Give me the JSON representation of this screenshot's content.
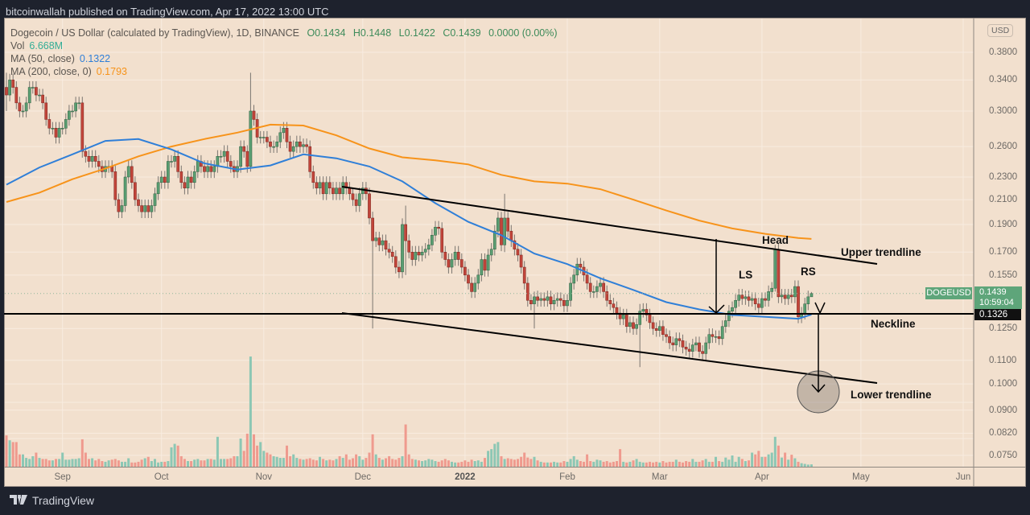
{
  "header": {
    "published": "bitcoinwallah published on TradingView.com, Apr 17, 2022 13:00 UTC"
  },
  "legend": {
    "symbol": "Dogecoin / US Dollar (calculated by TradingView), 1D, BINANCE",
    "open": "O0.1434",
    "high": "H0.1448",
    "low": "L0.1422",
    "close": "C0.1439",
    "change": "0.0000 (0.00%)",
    "vol_label": "Vol",
    "vol_value": "6.668M",
    "ma50_label": "MA (50, close)",
    "ma50_value": "0.1322",
    "ma200_label": "MA (200, close, 0)",
    "ma200_value": "0.1793"
  },
  "price_axis": {
    "currency": "USD",
    "ticks": [
      "0.3800",
      "0.3400",
      "0.3000",
      "0.2600",
      "0.2300",
      "0.2100",
      "0.1900",
      "0.1700",
      "0.1550",
      "0.1250",
      "0.1100",
      "0.1000",
      "0.0900",
      "0.0820",
      "0.0750"
    ],
    "last_symbol": "DOGEUSD",
    "last_price": "0.1439",
    "countdown": "10:59:04",
    "neckline_price": "0.1326"
  },
  "time_axis": {
    "labels": [
      "Sep",
      "Oct",
      "Nov",
      "Dec",
      "2022",
      "Feb",
      "Mar",
      "Apr",
      "May",
      "Jun"
    ]
  },
  "annotations": {
    "head": "Head",
    "ls": "LS",
    "rs": "RS",
    "upper": "Upper trendline",
    "neckline": "Neckline",
    "lower": "Lower trendline"
  },
  "footer": {
    "brand": "TradingView",
    "logo": "17"
  },
  "colors": {
    "up": "#5a9e72",
    "down": "#c2453a",
    "vol_up": "#8cc7b4",
    "vol_down": "#ef9a8e",
    "ma50": "#2f7fd8",
    "ma200": "#f7931a",
    "background": "#f2e0ce"
  },
  "chart_data": {
    "type": "candlestick",
    "scale": "log",
    "ylim": [
      0.075,
      0.4
    ],
    "xrange": [
      "2021-08-15",
      "2022-06-01"
    ],
    "first_date": "2021-08-15",
    "last_date": "2022-04-17",
    "first_open": 0.33,
    "close": [
      0.32,
      0.34,
      0.33,
      0.31,
      0.3,
      0.3,
      0.31,
      0.33,
      0.33,
      0.32,
      0.32,
      0.31,
      0.29,
      0.28,
      0.28,
      0.27,
      0.28,
      0.28,
      0.29,
      0.3,
      0.3,
      0.31,
      0.31,
      0.255,
      0.25,
      0.245,
      0.25,
      0.245,
      0.24,
      0.235,
      0.24,
      0.24,
      0.235,
      0.21,
      0.2,
      0.205,
      0.23,
      0.24,
      0.225,
      0.21,
      0.205,
      0.2,
      0.205,
      0.2,
      0.205,
      0.215,
      0.225,
      0.23,
      0.225,
      0.245,
      0.245,
      0.25,
      0.235,
      0.225,
      0.22,
      0.23,
      0.225,
      0.235,
      0.245,
      0.24,
      0.235,
      0.24,
      0.235,
      0.24,
      0.25,
      0.25,
      0.255,
      0.245,
      0.24,
      0.235,
      0.24,
      0.26,
      0.255,
      0.24,
      0.3,
      0.29,
      0.27,
      0.27,
      0.27,
      0.265,
      0.26,
      0.26,
      0.265,
      0.275,
      0.28,
      0.265,
      0.255,
      0.26,
      0.265,
      0.26,
      0.262,
      0.26,
      0.235,
      0.225,
      0.22,
      0.225,
      0.215,
      0.225,
      0.22,
      0.215,
      0.22,
      0.215,
      0.225,
      0.22,
      0.215,
      0.21,
      0.205,
      0.215,
      0.22,
      0.215,
      0.195,
      0.178,
      0.18,
      0.175,
      0.178,
      0.172,
      0.17,
      0.167,
      0.16,
      0.157,
      0.19,
      0.178,
      0.17,
      0.165,
      0.17,
      0.168,
      0.17,
      0.172,
      0.175,
      0.182,
      0.188,
      0.187,
      0.17,
      0.165,
      0.16,
      0.165,
      0.17,
      0.165,
      0.16,
      0.155,
      0.15,
      0.145,
      0.15,
      0.155,
      0.165,
      0.158,
      0.168,
      0.172,
      0.185,
      0.195,
      0.175,
      0.195,
      0.185,
      0.178,
      0.172,
      0.168,
      0.16,
      0.15,
      0.14,
      0.138,
      0.142,
      0.14,
      0.141,
      0.14,
      0.142,
      0.138,
      0.14,
      0.141,
      0.14,
      0.137,
      0.14,
      0.15,
      0.155,
      0.162,
      0.16,
      0.155,
      0.15,
      0.145,
      0.145,
      0.148,
      0.15,
      0.145,
      0.14,
      0.138,
      0.136,
      0.133,
      0.13,
      0.132,
      0.126,
      0.128,
      0.125,
      0.127,
      0.134,
      0.135,
      0.132,
      0.128,
      0.125,
      0.124,
      0.126,
      0.122,
      0.121,
      0.118,
      0.117,
      0.12,
      0.119,
      0.116,
      0.115,
      0.114,
      0.117,
      0.118,
      0.114,
      0.113,
      0.118,
      0.122,
      0.121,
      0.121,
      0.12,
      0.126,
      0.129,
      0.134,
      0.136,
      0.14,
      0.143,
      0.141,
      0.142,
      0.14,
      0.141,
      0.138,
      0.136,
      0.141,
      0.14,
      0.145,
      0.147,
      0.172,
      0.142,
      0.143,
      0.141,
      0.143,
      0.142,
      0.148,
      0.131,
      0.133,
      0.138,
      0.142,
      0.1439
    ],
    "wick_extremes": [
      {
        "i": 0,
        "high": 0.35,
        "low": 0.3
      },
      {
        "i": 74,
        "high": 0.35,
        "low": 0.235
      },
      {
        "i": 111,
        "high": 0.2,
        "low": 0.125
      },
      {
        "i": 121,
        "high": 0.205,
        "low": 0.155
      },
      {
        "i": 151,
        "high": 0.215,
        "low": 0.17
      },
      {
        "i": 160,
        "high": 0.145,
        "low": 0.125
      },
      {
        "i": 192,
        "high": 0.138,
        "low": 0.107
      },
      {
        "i": 233,
        "high": 0.175,
        "low": 0.145
      },
      {
        "i": 244,
        "high": 0.1448,
        "low": 0.1422
      }
    ],
    "volume_unit": "M",
    "volume": [
      89,
      75,
      70,
      70,
      35,
      35,
      25,
      22,
      30,
      40,
      25,
      22,
      22,
      18,
      18,
      22,
      22,
      40,
      20,
      20,
      22,
      22,
      24,
      78,
      40,
      22,
      24,
      18,
      22,
      16,
      14,
      18,
      20,
      22,
      18,
      14,
      14,
      24,
      12,
      12,
      14,
      20,
      24,
      28,
      16,
      22,
      12,
      14,
      14,
      16,
      55,
      65,
      60,
      30,
      22,
      16,
      16,
      20,
      22,
      18,
      18,
      22,
      22,
      20,
      85,
      22,
      22,
      22,
      24,
      30,
      30,
      80,
      45,
      94,
      313,
      92,
      60,
      70,
      45,
      40,
      35,
      30,
      28,
      25,
      25,
      60,
      30,
      35,
      25,
      22,
      20,
      22,
      24,
      20,
      18,
      28,
      22,
      18,
      20,
      18,
      22,
      30,
      25,
      35,
      20,
      24,
      35,
      30,
      20,
      25,
      40,
      92,
      35,
      25,
      20,
      24,
      30,
      22,
      20,
      25,
      30,
      120,
      35,
      22,
      20,
      18,
      16,
      18,
      22,
      20,
      16,
      14,
      18,
      22,
      18,
      14,
      12,
      12,
      14,
      18,
      14,
      20,
      16,
      18,
      14,
      25,
      45,
      50,
      65,
      70,
      30,
      22,
      24,
      22,
      20,
      22,
      28,
      40,
      26,
      22,
      28,
      18,
      14,
      12,
      12,
      12,
      14,
      12,
      12,
      16,
      14,
      22,
      30,
      20,
      16,
      14,
      35,
      16,
      14,
      20,
      18,
      14,
      16,
      12,
      14,
      16,
      50,
      14,
      12,
      14,
      18,
      22,
      14,
      12,
      12,
      14,
      12,
      14,
      12,
      16,
      12,
      14,
      14,
      20,
      14,
      12,
      16,
      14,
      22,
      14,
      14,
      18,
      22,
      14,
      14,
      28,
      16,
      14,
      26,
      20,
      32,
      14,
      28,
      22,
      16,
      18,
      40,
      35,
      45,
      28,
      28,
      35,
      40,
      85,
      60,
      26,
      40,
      20,
      34,
      24,
      14,
      10,
      8,
      6,
      6.668
    ],
    "ma50": {
      "i": [
        0,
        10,
        20,
        30,
        40,
        50,
        60,
        70,
        80,
        90,
        100,
        110,
        120,
        130,
        140,
        150,
        160,
        170,
        180,
        190,
        200,
        210,
        220,
        230,
        240,
        244
      ],
      "v": [
        0.223,
        0.239,
        0.252,
        0.266,
        0.268,
        0.257,
        0.243,
        0.237,
        0.241,
        0.252,
        0.248,
        0.24,
        0.226,
        0.207,
        0.192,
        0.182,
        0.169,
        0.162,
        0.153,
        0.146,
        0.139,
        0.135,
        0.132,
        0.131,
        0.13,
        0.1322
      ]
    },
    "ma200": {
      "i": [
        0,
        10,
        20,
        30,
        40,
        50,
        60,
        70,
        80,
        90,
        100,
        110,
        120,
        130,
        140,
        150,
        160,
        170,
        180,
        190,
        200,
        210,
        220,
        230,
        240,
        244
      ],
      "v": [
        0.208,
        0.216,
        0.228,
        0.238,
        0.25,
        0.26,
        0.268,
        0.275,
        0.284,
        0.283,
        0.272,
        0.258,
        0.249,
        0.246,
        0.242,
        0.232,
        0.226,
        0.224,
        0.219,
        0.21,
        0.201,
        0.193,
        0.187,
        0.183,
        0.18,
        0.1793
      ]
    },
    "neckline": 0.1326,
    "last_price": 0.1439
  }
}
